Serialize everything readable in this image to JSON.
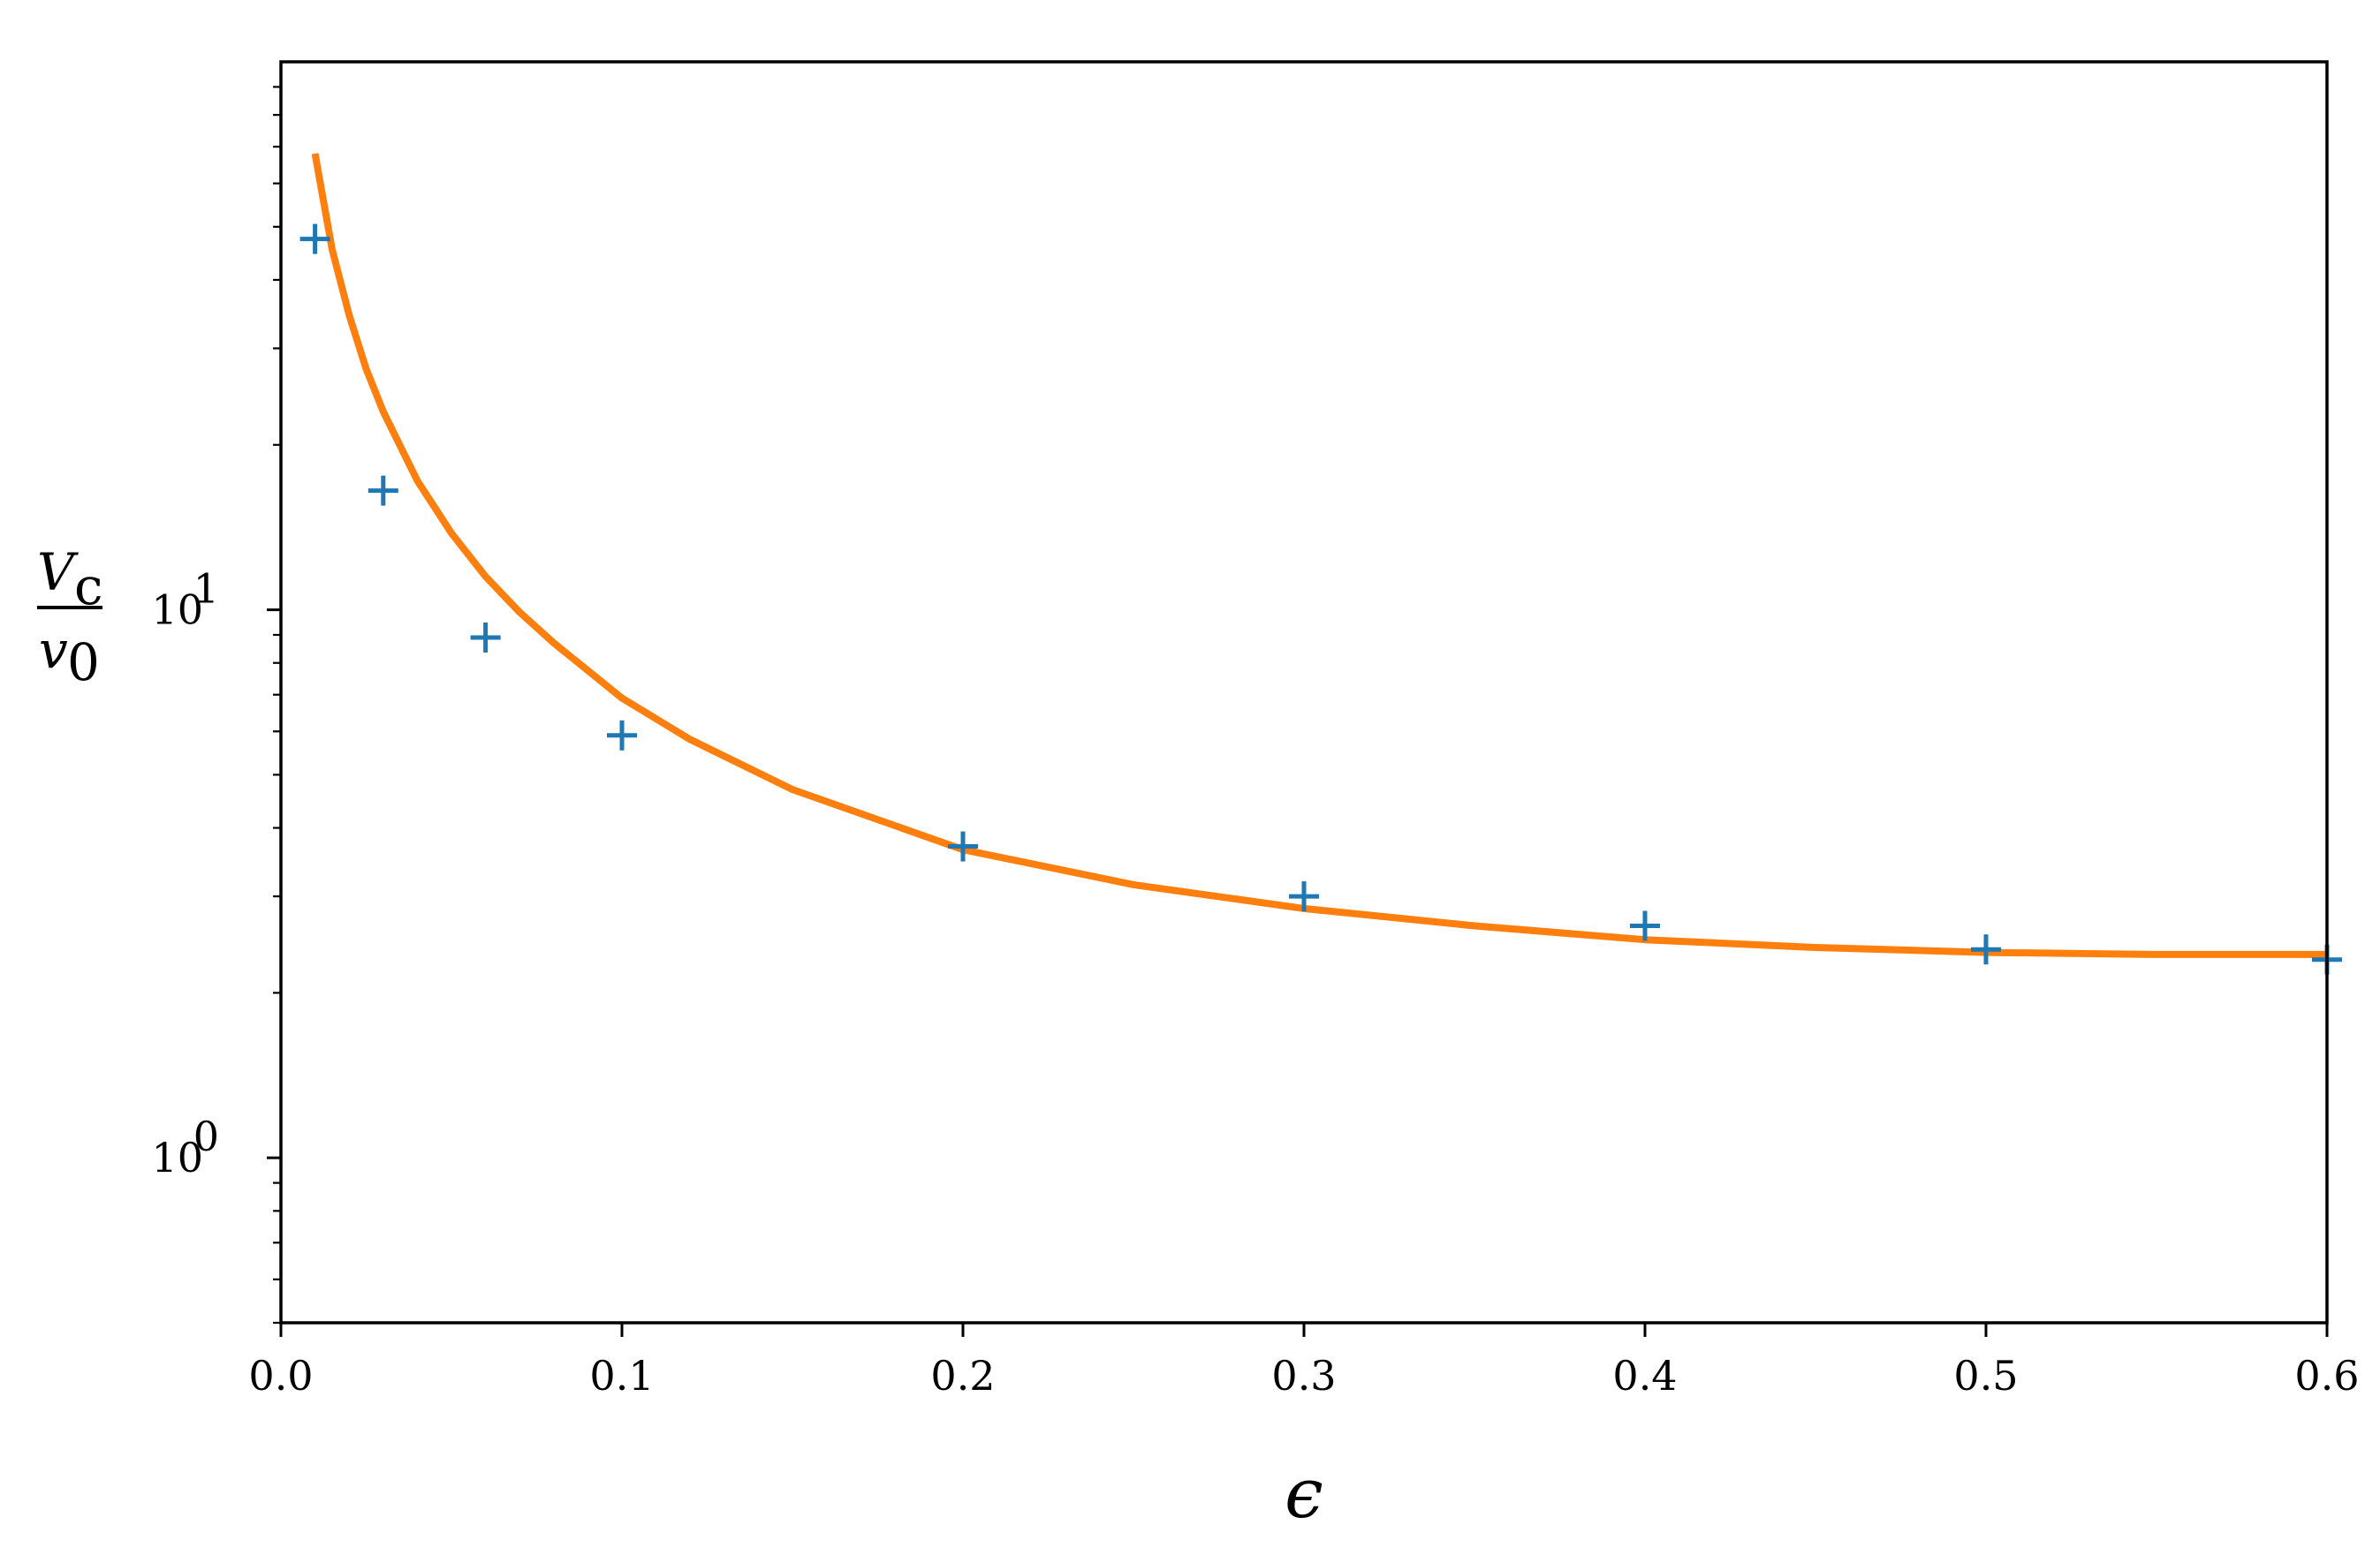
{
  "chart_data": {
    "type": "scatter",
    "xlabel": "ϵ",
    "ylabel_num": "V",
    "ylabel_num_sub": "c",
    "ylabel_den": "v",
    "ylabel_den_sub": "0",
    "xlim": [
      0.0,
      0.6
    ],
    "ylim": [
      0.5,
      100
    ],
    "yscale": "log",
    "grid": false,
    "x_ticks": [
      {
        "value": 0.0,
        "label": "0.0"
      },
      {
        "value": 0.1,
        "label": "0.1"
      },
      {
        "value": 0.2,
        "label": "0.2"
      },
      {
        "value": 0.3,
        "label": "0.3"
      },
      {
        "value": 0.4,
        "label": "0.4"
      },
      {
        "value": 0.5,
        "label": "0.5"
      },
      {
        "value": 0.6,
        "label": "0.6"
      }
    ],
    "y_ticks": [
      {
        "value": 1,
        "base": "10",
        "exp": "0"
      },
      {
        "value": 10,
        "base": "10",
        "exp": "1"
      }
    ],
    "series": [
      {
        "kind": "points",
        "marker": "plus",
        "color": "#1f77b4",
        "x": [
          0.01,
          0.03,
          0.06,
          0.1,
          0.2,
          0.3,
          0.4,
          0.5,
          0.6
        ],
        "y": [
          47.5,
          16.5,
          8.9,
          5.9,
          3.7,
          3.0,
          2.65,
          2.4,
          2.3
        ]
      },
      {
        "kind": "line",
        "color": "#ff7f0e",
        "x": [
          0.01,
          0.015,
          0.02,
          0.025,
          0.03,
          0.04,
          0.05,
          0.06,
          0.07,
          0.08,
          0.1,
          0.12,
          0.15,
          0.2,
          0.25,
          0.3,
          0.35,
          0.4,
          0.45,
          0.5,
          0.55,
          0.6
        ],
        "y": [
          68.0,
          45.5,
          34.5,
          27.5,
          23.0,
          17.2,
          13.8,
          11.5,
          9.9,
          8.7,
          6.9,
          5.8,
          4.7,
          3.65,
          3.15,
          2.85,
          2.65,
          2.5,
          2.42,
          2.37,
          2.35,
          2.35
        ]
      }
    ]
  }
}
